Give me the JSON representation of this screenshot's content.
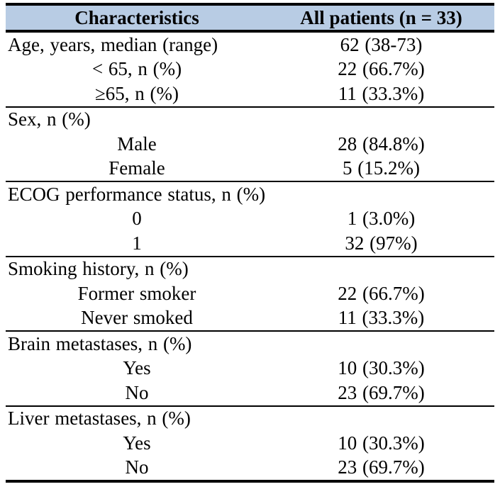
{
  "table": {
    "header": {
      "characteristics": "Characteristics",
      "all_patients": "All patients (n = 33)"
    },
    "colors": {
      "header_bg": "#b8cce4",
      "border": "#000000",
      "text": "#000000"
    },
    "sections": [
      {
        "name": "age",
        "rows": [
          {
            "label": "Age, years, median (range)",
            "value": "62 (38-73)"
          },
          {
            "label": "< 65, n (%)",
            "value": "22 (66.7%)"
          },
          {
            "label": "≥65, n (%)",
            "value": "11 (33.3%)"
          }
        ]
      },
      {
        "name": "sex",
        "rows": [
          {
            "label": "Sex, n (%)",
            "value": ""
          },
          {
            "label": "Male",
            "value": "28 (84.8%)"
          },
          {
            "label": "Female",
            "value": "5 (15.2%)"
          }
        ]
      },
      {
        "name": "ecog",
        "rows": [
          {
            "label": "ECOG performance status, n (%)",
            "value": ""
          },
          {
            "label": "0",
            "value": "1 (3.0%)"
          },
          {
            "label": "1",
            "value": "32 (97%)"
          }
        ]
      },
      {
        "name": "smoking",
        "rows": [
          {
            "label": "Smoking history, n (%)",
            "value": ""
          },
          {
            "label": "Former smoker",
            "value": "22 (66.7%)"
          },
          {
            "label": "Never smoked",
            "value": "11 (33.3%)"
          }
        ]
      },
      {
        "name": "brain-metastases",
        "rows": [
          {
            "label": "Brain metastases, n (%)",
            "value": ""
          },
          {
            "label": "Yes",
            "value": "10 (30.3%)"
          },
          {
            "label": "No",
            "value": "23 (69.7%)"
          }
        ]
      },
      {
        "name": "liver-metastases",
        "rows": [
          {
            "label": "Liver metastases, n (%)",
            "value": ""
          },
          {
            "label": "Yes",
            "value": "10 (30.3%)"
          },
          {
            "label": "No",
            "value": "23 (69.7%)"
          }
        ]
      }
    ]
  }
}
